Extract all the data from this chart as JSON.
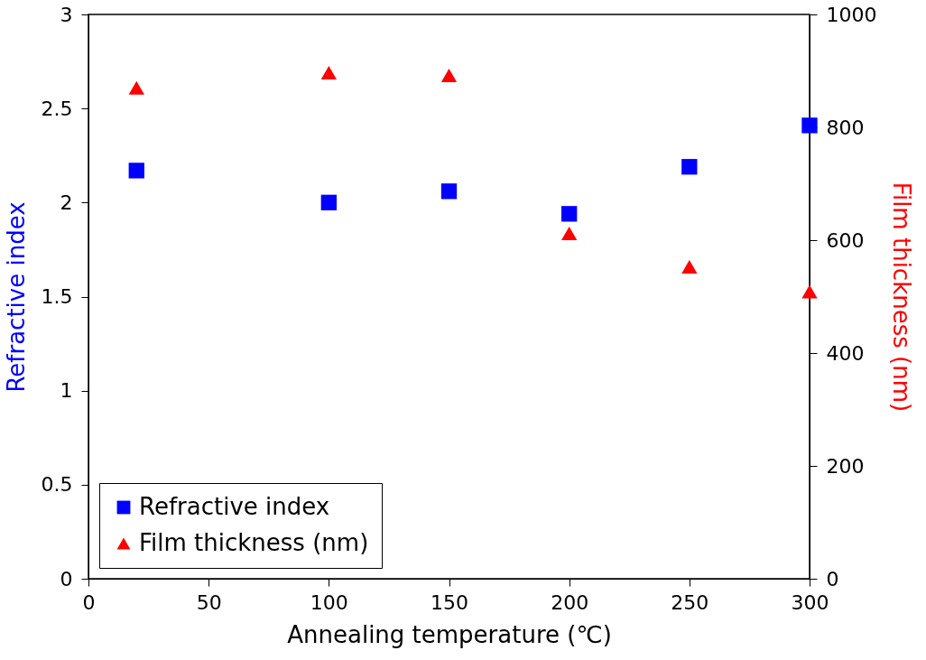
{
  "chart_data": {
    "type": "scatter",
    "xlabel": "Annealing temperature (℃)",
    "ylabel": "Refractive index",
    "y2label": "Film thickness (nm)",
    "x": [
      20,
      100,
      150,
      200,
      250,
      300
    ],
    "series": [
      {
        "name": "Refractive index",
        "color": "#0000ff",
        "marker": "square",
        "values": [
          2.17,
          2.0,
          2.06,
          1.94,
          2.19,
          2.41
        ]
      },
      {
        "name": "Film thickness (nm)",
        "color": "#ff0000",
        "marker": "triangle",
        "axis": "y2",
        "values": [
          870,
          897,
          892,
          612,
          553,
          509
        ]
      }
    ],
    "xlim": [
      0,
      300
    ],
    "xticks": [
      0,
      50,
      100,
      150,
      200,
      250,
      300
    ],
    "ylim": [
      0,
      3
    ],
    "yticks": [
      0,
      0.5,
      1,
      1.5,
      2,
      2.5,
      3
    ],
    "y2lim": [
      0,
      1000
    ],
    "y2ticks": [
      0,
      200,
      400,
      600,
      800,
      1000
    ],
    "grid": false,
    "legend": "bottom left"
  }
}
